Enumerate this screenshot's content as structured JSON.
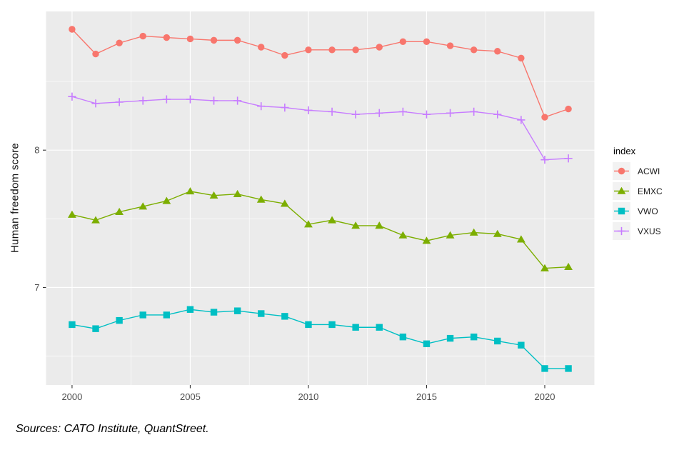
{
  "figure": {
    "background": "#FFFFFF",
    "source_note": "Sources: CATO Institute, QuantStreet."
  },
  "chart_data": {
    "type": "line",
    "title": "",
    "xlabel": "",
    "ylabel": "Human freedom score",
    "xlim": [
      1998.9,
      2022.1
    ],
    "ylim": [
      6.29,
      9.01
    ],
    "x_ticks": [
      2000,
      2005,
      2010,
      2015,
      2020
    ],
    "y_ticks": [
      7,
      8
    ],
    "x_minor_ticks": [
      2002.5,
      2007.5,
      2012.5,
      2017.5
    ],
    "y_minor_ticks": [
      6.5,
      7.5,
      8.5
    ],
    "grid": "on",
    "panel_background": "#EBEBEB",
    "gridline_color": "#FFFFFF",
    "axis_text_color": "#4D4D4D",
    "tick_mark_color": "#333333",
    "legend": {
      "title": "index",
      "position": "right",
      "key_background": "#F2F2F2"
    },
    "x": [
      2000,
      2001,
      2002,
      2003,
      2004,
      2005,
      2006,
      2007,
      2008,
      2009,
      2010,
      2011,
      2012,
      2013,
      2014,
      2015,
      2016,
      2017,
      2018,
      2019,
      2020,
      2021
    ],
    "series": [
      {
        "name": "ACWI",
        "color": "#F8766D",
        "marker": "circle",
        "values": [
          8.88,
          8.7,
          8.78,
          8.83,
          8.82,
          8.81,
          8.8,
          8.8,
          8.75,
          8.69,
          8.73,
          8.73,
          8.73,
          8.75,
          8.79,
          8.79,
          8.76,
          8.73,
          8.72,
          8.67,
          8.24,
          8.3
        ]
      },
      {
        "name": "EMXC",
        "color": "#7CAE00",
        "marker": "triangle",
        "values": [
          7.53,
          7.49,
          7.55,
          7.59,
          7.63,
          7.7,
          7.67,
          7.68,
          7.64,
          7.61,
          7.46,
          7.49,
          7.45,
          7.45,
          7.38,
          7.34,
          7.38,
          7.4,
          7.39,
          7.35,
          7.14,
          7.15
        ]
      },
      {
        "name": "VWO",
        "color": "#00BFC4",
        "marker": "square",
        "values": [
          6.73,
          6.7,
          6.76,
          6.8,
          6.8,
          6.84,
          6.82,
          6.83,
          6.81,
          6.79,
          6.73,
          6.73,
          6.71,
          6.71,
          6.64,
          6.59,
          6.63,
          6.64,
          6.61,
          6.58,
          6.41,
          6.41
        ]
      },
      {
        "name": "VXUS",
        "color": "#C77CFF",
        "marker": "plus",
        "values": [
          8.39,
          8.34,
          8.35,
          8.36,
          8.37,
          8.37,
          8.36,
          8.36,
          8.32,
          8.31,
          8.29,
          8.28,
          8.26,
          8.27,
          8.28,
          8.26,
          8.27,
          8.28,
          8.26,
          8.22,
          7.93,
          7.94
        ]
      }
    ]
  }
}
